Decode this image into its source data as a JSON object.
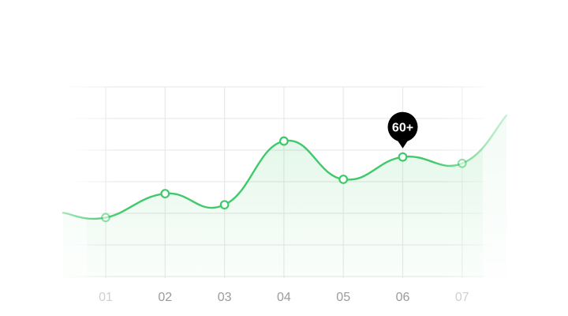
{
  "chart_data": {
    "type": "area",
    "title": "",
    "xlabel": "",
    "ylabel": "",
    "categories": [
      "01",
      "02",
      "03",
      "04",
      "05",
      "06",
      "07"
    ],
    "series": [
      {
        "values": [
          19,
          26.5,
          23,
          43,
          31,
          38,
          36
        ]
      }
    ],
    "ylim": [
      0,
      60
    ],
    "grid": true,
    "legend": "none",
    "highlight": {
      "index": 5,
      "label": "60+"
    },
    "faded_categories": [
      0,
      6
    ],
    "colors": {
      "line": "#3ec96a",
      "area": "#3ec96a",
      "grid": "#e9e9e9",
      "tick_label": "#9a9a9a",
      "tick_label_faded": "#d0d0d0",
      "badge": "#000000"
    }
  }
}
